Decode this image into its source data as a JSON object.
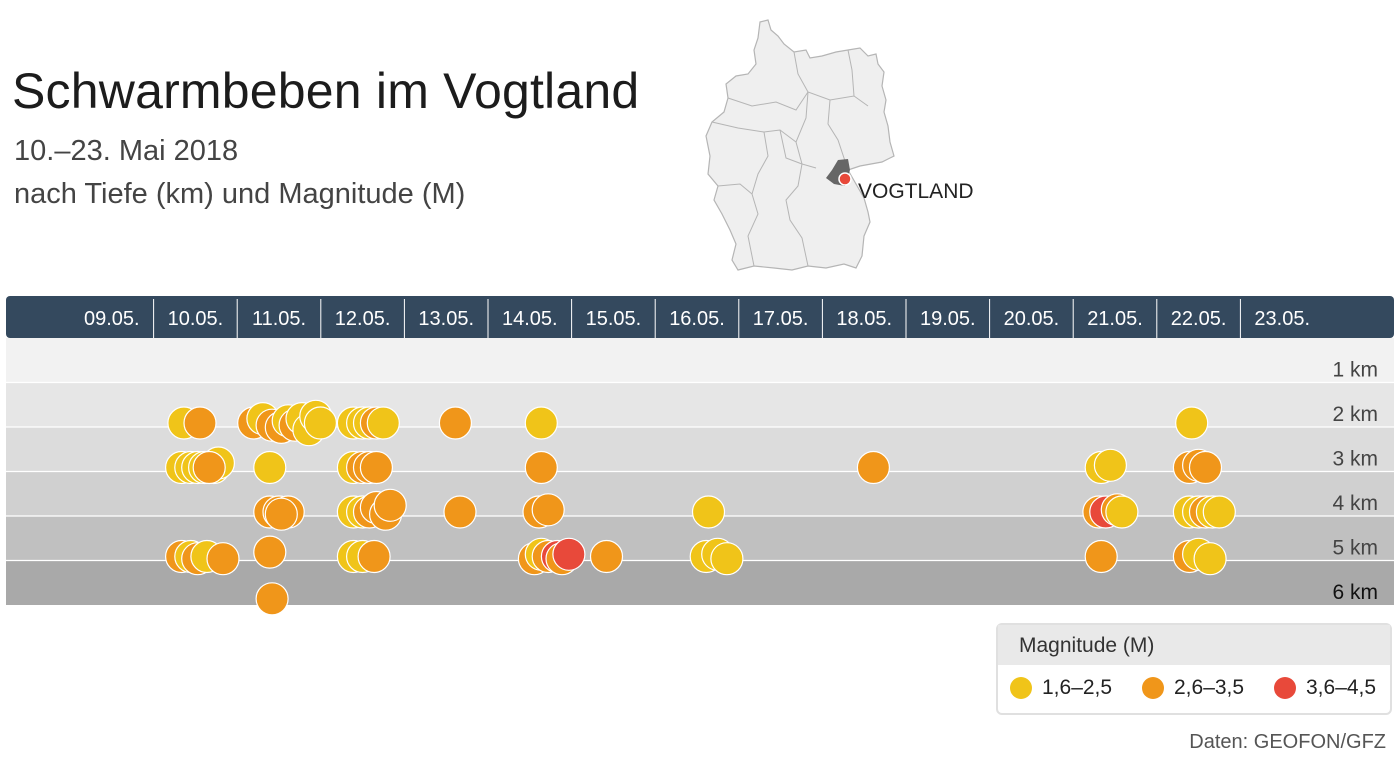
{
  "title": "Schwarmbeben im Vogtland",
  "subtitle_line1": "10.–23. Mai 2018",
  "subtitle_line2": "nach Tiefe (km) und Magnitude (M)",
  "map": {
    "label": "VOGTLAND",
    "marker_color": "#e8493a",
    "region_color": "#666666",
    "land_color": "#efefef"
  },
  "legend": {
    "title": "Magnitude (M)",
    "items": [
      {
        "label": "1,6–2,5",
        "color": "#f0c419"
      },
      {
        "label": "2,6–3,5",
        "color": "#f0961a"
      },
      {
        "label": "3,6–4,5",
        "color": "#e8493a"
      }
    ]
  },
  "source": "Daten: GEOFON/GFZ",
  "chart_data": {
    "type": "scatter",
    "header_color": "#34495e",
    "x_categories": [
      "09.05.",
      "10.05.",
      "11.05.",
      "12.05.",
      "13.05.",
      "14.05.",
      "15.05.",
      "16.05.",
      "17.05.",
      "18.05.",
      "19.05.",
      "20.05.",
      "21.05.",
      "22.05.",
      "23.05."
    ],
    "y_ticks": [
      "1 km",
      "2 km",
      "3 km",
      "4 km",
      "5 km",
      "6 km"
    ],
    "ylabel": "Tiefe (km)",
    "y_range": [
      1,
      6
    ],
    "magnitude_classes": [
      "1,6–2,5",
      "2,6–3,5",
      "3,6–4,5"
    ],
    "points": [
      {
        "day": "10.05.",
        "offset": -0.25,
        "depth": 2,
        "class": 0
      },
      {
        "day": "10.05.",
        "offset": 0.1,
        "depth": 2,
        "class": 1
      },
      {
        "day": "10.05.",
        "offset": -0.3,
        "depth": 3,
        "class": 0
      },
      {
        "day": "10.05.",
        "offset": -0.1,
        "depth": 3,
        "class": 0
      },
      {
        "day": "10.05.",
        "offset": 0.05,
        "depth": 3,
        "class": 0
      },
      {
        "day": "10.05.",
        "offset": 0.2,
        "depth": 3,
        "class": 0
      },
      {
        "day": "10.05.",
        "offset": 0.4,
        "depth": 3,
        "class": 0
      },
      {
        "day": "10.05.",
        "offset": 0.5,
        "depth": 2.9,
        "class": 0
      },
      {
        "day": "10.05.",
        "offset": 0.3,
        "depth": 3,
        "class": 1
      },
      {
        "day": "10.05.",
        "offset": -0.3,
        "depth": 5,
        "class": 1
      },
      {
        "day": "10.05.",
        "offset": -0.1,
        "depth": 5,
        "class": 0
      },
      {
        "day": "10.05.",
        "offset": 0.05,
        "depth": 5.05,
        "class": 1
      },
      {
        "day": "10.05.",
        "offset": 0.25,
        "depth": 5,
        "class": 0
      },
      {
        "day": "10.05.",
        "offset": 0.6,
        "depth": 5.05,
        "class": 1
      },
      {
        "day": "11.05.",
        "offset": -0.55,
        "depth": 2,
        "class": 1
      },
      {
        "day": "11.05.",
        "offset": -0.35,
        "depth": 1.9,
        "class": 0
      },
      {
        "day": "11.05.",
        "offset": -0.15,
        "depth": 2.05,
        "class": 1
      },
      {
        "day": "11.05.",
        "offset": 0.05,
        "depth": 2.1,
        "class": 1
      },
      {
        "day": "11.05.",
        "offset": 0.2,
        "depth": 1.95,
        "class": 0
      },
      {
        "day": "11.05.",
        "offset": 0.35,
        "depth": 2.05,
        "class": 1
      },
      {
        "day": "11.05.",
        "offset": 0.5,
        "depth": 1.9,
        "class": 0
      },
      {
        "day": "11.05.",
        "offset": 0.65,
        "depth": 2.15,
        "class": 0
      },
      {
        "day": "11.05.",
        "offset": 0.8,
        "depth": 1.85,
        "class": 0
      },
      {
        "day": "11.05.",
        "offset": 0.9,
        "depth": 2,
        "class": 0
      },
      {
        "day": "11.05.",
        "offset": -0.2,
        "depth": 3,
        "class": 0
      },
      {
        "day": "11.05.",
        "offset": -0.2,
        "depth": 4,
        "class": 1
      },
      {
        "day": "11.05.",
        "offset": 0.0,
        "depth": 4,
        "class": 1
      },
      {
        "day": "11.05.",
        "offset": 0.2,
        "depth": 4,
        "class": 1
      },
      {
        "day": "11.05.",
        "offset": 0.05,
        "depth": 4.05,
        "class": 1
      },
      {
        "day": "11.05.",
        "offset": -0.2,
        "depth": 4.9,
        "class": 1
      },
      {
        "day": "11.05.",
        "offset": -0.15,
        "depth": 5.95,
        "class": 1
      },
      {
        "day": "12.05.",
        "offset": -0.2,
        "depth": 2,
        "class": 0
      },
      {
        "day": "12.05.",
        "offset": 0.0,
        "depth": 2,
        "class": 0
      },
      {
        "day": "12.05.",
        "offset": 0.15,
        "depth": 2,
        "class": 0
      },
      {
        "day": "12.05.",
        "offset": 0.3,
        "depth": 2,
        "class": 1
      },
      {
        "day": "12.05.",
        "offset": 0.45,
        "depth": 2,
        "class": 0
      },
      {
        "day": "12.05.",
        "offset": -0.2,
        "depth": 3,
        "class": 0
      },
      {
        "day": "12.05.",
        "offset": 0.0,
        "depth": 3,
        "class": 1
      },
      {
        "day": "12.05.",
        "offset": 0.15,
        "depth": 3,
        "class": 1
      },
      {
        "day": "12.05.",
        "offset": 0.3,
        "depth": 3,
        "class": 1
      },
      {
        "day": "12.05.",
        "offset": -0.2,
        "depth": 4,
        "class": 0
      },
      {
        "day": "12.05.",
        "offset": 0.0,
        "depth": 4,
        "class": 0
      },
      {
        "day": "12.05.",
        "offset": 0.15,
        "depth": 4,
        "class": 1
      },
      {
        "day": "12.05.",
        "offset": 0.3,
        "depth": 3.9,
        "class": 1
      },
      {
        "day": "12.05.",
        "offset": 0.5,
        "depth": 4.05,
        "class": 1
      },
      {
        "day": "12.05.",
        "offset": 0.6,
        "depth": 3.85,
        "class": 1
      },
      {
        "day": "12.05.",
        "offset": -0.2,
        "depth": 5,
        "class": 0
      },
      {
        "day": "12.05.",
        "offset": 0.0,
        "depth": 5,
        "class": 0
      },
      {
        "day": "12.05.",
        "offset": 0.25,
        "depth": 5,
        "class": 1
      },
      {
        "day": "13.05.",
        "offset": 0.2,
        "depth": 2,
        "class": 1
      },
      {
        "day": "13.05.",
        "offset": 0.3,
        "depth": 4,
        "class": 1
      },
      {
        "day": "14.05.",
        "offset": 0.25,
        "depth": 2,
        "class": 0
      },
      {
        "day": "14.05.",
        "offset": 0.25,
        "depth": 3,
        "class": 1
      },
      {
        "day": "14.05.",
        "offset": 0.2,
        "depth": 4,
        "class": 1
      },
      {
        "day": "14.05.",
        "offset": 0.4,
        "depth": 3.95,
        "class": 1
      },
      {
        "day": "14.05.",
        "offset": 0.1,
        "depth": 5.05,
        "class": 1
      },
      {
        "day": "14.05.",
        "offset": 0.25,
        "depth": 4.95,
        "class": 0
      },
      {
        "day": "14.05.",
        "offset": 0.4,
        "depth": 5,
        "class": 1
      },
      {
        "day": "14.05.",
        "offset": 0.6,
        "depth": 5,
        "class": 2
      },
      {
        "day": "14.05.",
        "offset": 0.7,
        "depth": 5.05,
        "class": 1
      },
      {
        "day": "14.05.",
        "offset": 0.85,
        "depth": 4.95,
        "class": 2
      },
      {
        "day": "15.05.",
        "offset": -0.15,
        "depth": 5,
        "class": 1
      },
      {
        "day": "16.05.",
        "offset": 0.25,
        "depth": 4,
        "class": 0
      },
      {
        "day": "16.05.",
        "offset": 0.2,
        "depth": 5,
        "class": 0
      },
      {
        "day": "16.05.",
        "offset": 0.45,
        "depth": 4.95,
        "class": 0
      },
      {
        "day": "16.05.",
        "offset": 0.65,
        "depth": 5.05,
        "class": 0
      },
      {
        "day": "18.05.",
        "offset": 0.2,
        "depth": 3,
        "class": 1
      },
      {
        "day": "21.05.",
        "offset": -0.3,
        "depth": 3,
        "class": 0
      },
      {
        "day": "21.05.",
        "offset": -0.1,
        "depth": 2.95,
        "class": 0
      },
      {
        "day": "21.05.",
        "offset": -0.35,
        "depth": 4,
        "class": 1
      },
      {
        "day": "21.05.",
        "offset": -0.2,
        "depth": 4,
        "class": 2
      },
      {
        "day": "21.05.",
        "offset": 0.05,
        "depth": 3.95,
        "class": 1
      },
      {
        "day": "21.05.",
        "offset": 0.15,
        "depth": 4,
        "class": 0
      },
      {
        "day": "21.05.",
        "offset": -0.3,
        "depth": 5,
        "class": 1
      },
      {
        "day": "22.05.",
        "offset": -0.15,
        "depth": 2,
        "class": 0
      },
      {
        "day": "22.05.",
        "offset": -0.2,
        "depth": 3,
        "class": 1
      },
      {
        "day": "22.05.",
        "offset": 0.0,
        "depth": 2.95,
        "class": 1
      },
      {
        "day": "22.05.",
        "offset": 0.15,
        "depth": 3,
        "class": 1
      },
      {
        "day": "22.05.",
        "offset": -0.2,
        "depth": 4,
        "class": 0
      },
      {
        "day": "22.05.",
        "offset": 0.0,
        "depth": 4,
        "class": 0
      },
      {
        "day": "22.05.",
        "offset": 0.15,
        "depth": 4,
        "class": 1
      },
      {
        "day": "22.05.",
        "offset": 0.3,
        "depth": 4,
        "class": 0
      },
      {
        "day": "22.05.",
        "offset": 0.45,
        "depth": 4,
        "class": 0
      },
      {
        "day": "22.05.",
        "offset": -0.2,
        "depth": 5,
        "class": 1
      },
      {
        "day": "22.05.",
        "offset": 0.0,
        "depth": 4.95,
        "class": 0
      },
      {
        "day": "22.05.",
        "offset": 0.25,
        "depth": 5.05,
        "class": 0
      }
    ]
  }
}
